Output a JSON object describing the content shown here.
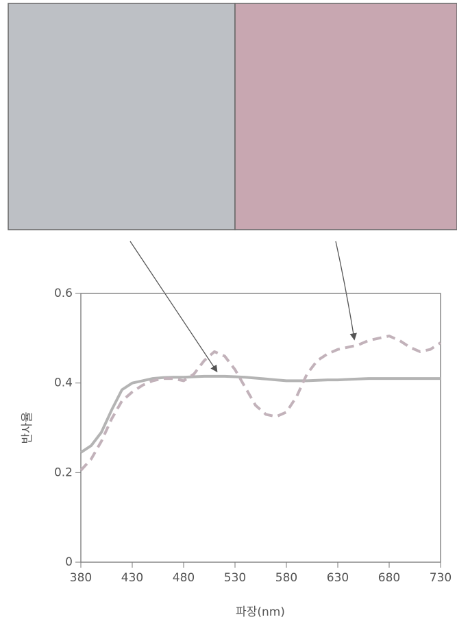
{
  "chart_data": {
    "type": "line",
    "x_label": "파장(nm)",
    "y_label": "반사율",
    "x": [
      380,
      390,
      400,
      410,
      420,
      430,
      440,
      450,
      460,
      470,
      480,
      490,
      500,
      510,
      520,
      530,
      540,
      550,
      560,
      570,
      580,
      590,
      600,
      610,
      620,
      630,
      640,
      650,
      660,
      670,
      680,
      690,
      700,
      710,
      720,
      730
    ],
    "series": [
      {
        "color": "#b4b4b4",
        "dashed": false,
        "values": [
          0.245,
          0.26,
          0.29,
          0.34,
          0.385,
          0.4,
          0.405,
          0.41,
          0.412,
          0.413,
          0.413,
          0.414,
          0.415,
          0.415,
          0.415,
          0.414,
          0.413,
          0.411,
          0.409,
          0.407,
          0.405,
          0.405,
          0.405,
          0.406,
          0.407,
          0.407,
          0.408,
          0.409,
          0.41,
          0.41,
          0.41,
          0.41,
          0.41,
          0.41,
          0.41,
          0.41
        ]
      },
      {
        "color": "#c2b2ba",
        "dashed": true,
        "values": [
          0.205,
          0.23,
          0.27,
          0.32,
          0.36,
          0.38,
          0.395,
          0.405,
          0.41,
          0.41,
          0.405,
          0.42,
          0.45,
          0.47,
          0.46,
          0.43,
          0.39,
          0.35,
          0.33,
          0.325,
          0.335,
          0.37,
          0.42,
          0.45,
          0.465,
          0.475,
          0.48,
          0.485,
          0.495,
          0.5,
          0.505,
          0.495,
          0.48,
          0.47,
          0.475,
          0.49
        ]
      }
    ],
    "xlim": [
      380,
      730
    ],
    "xticks": [
      380,
      430,
      480,
      530,
      580,
      630,
      680,
      730
    ],
    "ylim": [
      0,
      0.6
    ],
    "yticks": [
      0,
      0.2,
      0.4,
      0.6
    ]
  }
}
